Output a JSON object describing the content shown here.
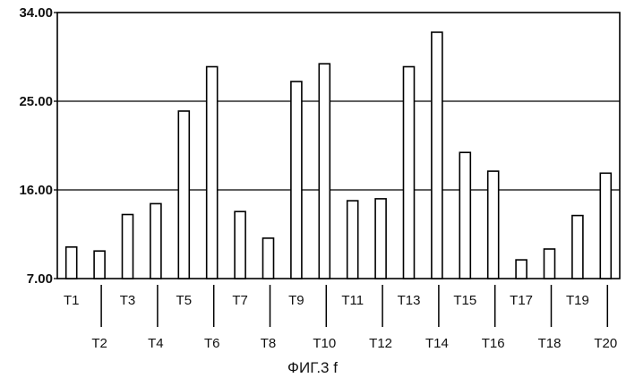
{
  "chart_data": {
    "type": "bar",
    "title": "",
    "caption": "ФИГ.3 f",
    "xlabel": "",
    "ylabel": "",
    "ylim": [
      7.0,
      34.0
    ],
    "yticks": [
      "7.00",
      "16.00",
      "25.00",
      "34.00"
    ],
    "grid": "horizontal at 16.00 and 25.00",
    "categories": [
      "T1",
      "T2",
      "T3",
      "T4",
      "T5",
      "T6",
      "T7",
      "T8",
      "T9",
      "T10",
      "T11",
      "T12",
      "T13",
      "T14",
      "T15",
      "T16",
      "T17",
      "T18",
      "T19",
      "T20"
    ],
    "values": [
      10.2,
      9.8,
      13.5,
      14.6,
      24.0,
      28.5,
      13.8,
      11.1,
      27.0,
      28.8,
      14.9,
      15.1,
      28.5,
      32.0,
      19.8,
      17.9,
      8.9,
      10.0,
      13.4,
      17.7
    ]
  }
}
